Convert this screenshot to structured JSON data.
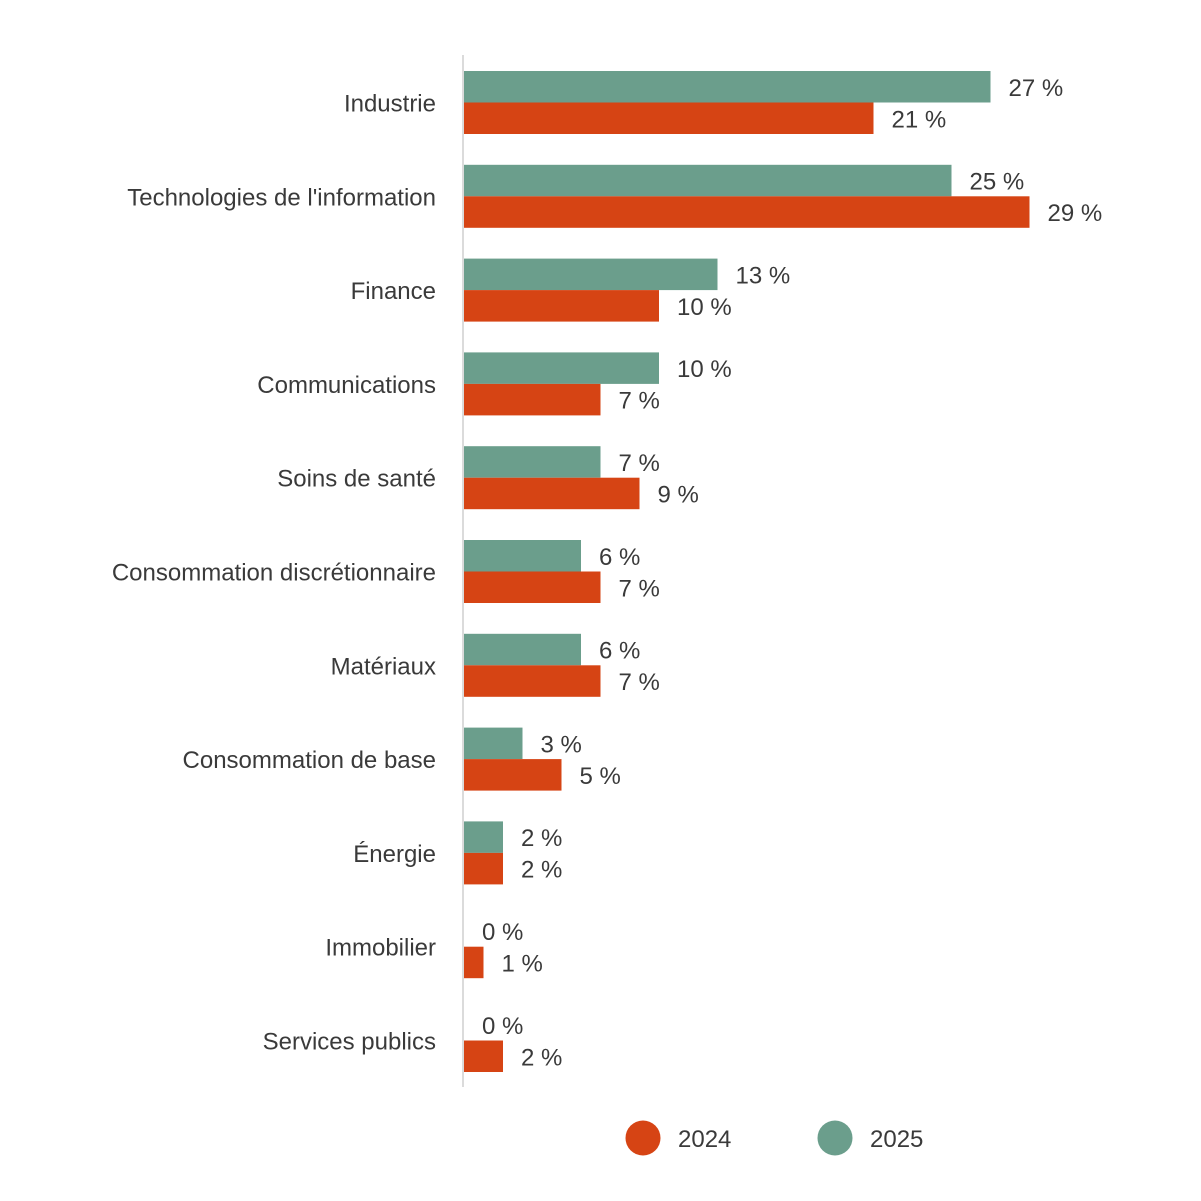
{
  "chart_data": {
    "type": "bar",
    "orientation": "horizontal",
    "categories": [
      "Industrie",
      "Technologies de l'information",
      "Finance",
      "Communications",
      "Soins de santé",
      "Consommation discrétionnaire",
      "Matériaux",
      "Consommation de base",
      "Énergie",
      "Immobilier",
      "Services publics"
    ],
    "series": [
      {
        "name": "2025",
        "color": "#6b9e8c",
        "values": [
          27,
          25,
          13,
          10,
          7,
          6,
          6,
          3,
          2,
          0,
          0
        ],
        "labels": [
          "27 %",
          "25 %",
          "13 %",
          "10 %",
          "7 %",
          "6 %",
          "6 %",
          "3 %",
          "2 %",
          "0 %",
          "0 %"
        ]
      },
      {
        "name": "2024",
        "color": "#d64414",
        "values": [
          21,
          29,
          10,
          7,
          9,
          7,
          7,
          5,
          2,
          1,
          2
        ],
        "labels": [
          "21 %",
          "29 %",
          "10 %",
          "7 %",
          "9 %",
          "7 %",
          "7 %",
          "5 %",
          "2 %",
          "1 %",
          "2 %"
        ]
      }
    ],
    "legend": {
      "placement": "bottom",
      "order": [
        "2024",
        "2025"
      ]
    },
    "grid": false
  }
}
